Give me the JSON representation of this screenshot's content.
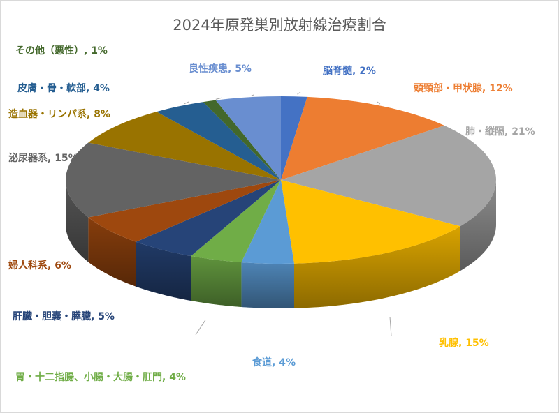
{
  "chart_data": {
    "type": "pie",
    "title": "2024年原発巣別放射線治療割合",
    "slices": [
      {
        "label": "脳脊髄",
        "value": 2,
        "color": "#4472C4"
      },
      {
        "label": "頭頸部・甲状腺",
        "value": 12,
        "color": "#ED7D31"
      },
      {
        "label": "肺・縦隔",
        "value": 21,
        "color": "#A5A5A5"
      },
      {
        "label": "乳腺",
        "value": 15,
        "color": "#FFC000"
      },
      {
        "label": "食道",
        "value": 4,
        "color": "#5B9BD5"
      },
      {
        "label": "胃・十二指腸、小腸・大腸・肛門",
        "value": 4,
        "color": "#70AD47"
      },
      {
        "label": "肝臓・胆嚢・膵臓",
        "value": 5,
        "color": "#264478"
      },
      {
        "label": "婦人科系",
        "value": 6,
        "color": "#9E480E"
      },
      {
        "label": "泌尿器系",
        "value": 15,
        "color": "#636363"
      },
      {
        "label": "造血器・リンパ系",
        "value": 8,
        "color": "#997300"
      },
      {
        "label": "皮膚・骨・軟部",
        "value": 4,
        "color": "#255E91"
      },
      {
        "label": "その他（悪性）",
        "value": 1,
        "color": "#43682B"
      },
      {
        "label": "良性疾患",
        "value": 5,
        "color": "#698ED0"
      }
    ]
  }
}
